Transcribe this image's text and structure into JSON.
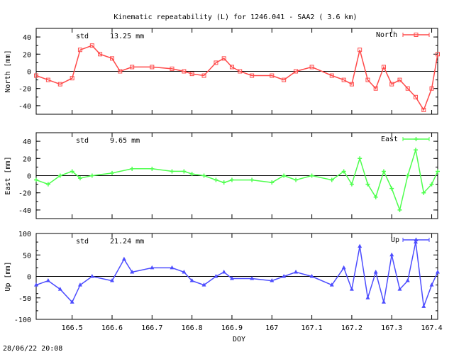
{
  "title": "Kinematic repeatability (L) for 1246.041 - SAA2  (  3.6 km)",
  "timestamp": "28/06/22 20:08",
  "xlabel": "DOY",
  "x_ticks": [
    "166.5",
    "166.6",
    "166.7",
    "166.8",
    "166.9",
    "167",
    "167.1",
    "167.2",
    "167.3",
    "167.4"
  ],
  "chart_data": [
    {
      "type": "line",
      "name": "North",
      "ylabel": "North [mm]",
      "stat_label": "std",
      "stat_value": "13.25 mm",
      "color": "#ff4a4a",
      "marker": "square",
      "xlim": [
        166.41,
        167.415
      ],
      "ylim": [
        -50,
        50
      ],
      "y_ticks": [
        "40",
        "20",
        "0",
        "-20",
        "-40"
      ],
      "x": [
        166.41,
        166.44,
        166.47,
        166.5,
        166.52,
        166.55,
        166.57,
        166.6,
        166.62,
        166.65,
        166.7,
        166.75,
        166.78,
        166.8,
        166.83,
        166.86,
        166.88,
        166.9,
        166.92,
        166.95,
        167.0,
        167.03,
        167.06,
        167.1,
        167.15,
        167.18,
        167.2,
        167.22,
        167.24,
        167.26,
        167.28,
        167.3,
        167.32,
        167.34,
        167.36,
        167.38,
        167.4,
        167.415
      ],
      "y": [
        -5,
        -10,
        -15,
        -8,
        25,
        30,
        20,
        15,
        0,
        5,
        5,
        3,
        0,
        -3,
        -5,
        10,
        15,
        5,
        0,
        -5,
        -5,
        -10,
        0,
        5,
        -5,
        -10,
        -15,
        25,
        -10,
        -20,
        5,
        -15,
        -10,
        -20,
        -30,
        -45,
        -20,
        20
      ]
    },
    {
      "type": "line",
      "name": "East",
      "ylabel": "East [mm]",
      "stat_label": "std",
      "stat_value": "9.65 mm",
      "color": "#4dff4d",
      "marker": "plus",
      "xlim": [
        166.41,
        167.415
      ],
      "ylim": [
        -50,
        50
      ],
      "y_ticks": [
        "40",
        "20",
        "0",
        "-20",
        "-40"
      ],
      "x": [
        166.41,
        166.44,
        166.47,
        166.5,
        166.52,
        166.55,
        166.6,
        166.65,
        166.7,
        166.75,
        166.78,
        166.8,
        166.83,
        166.86,
        166.88,
        166.9,
        166.95,
        167.0,
        167.03,
        167.06,
        167.1,
        167.15,
        167.18,
        167.2,
        167.22,
        167.24,
        167.26,
        167.28,
        167.3,
        167.32,
        167.34,
        167.36,
        167.38,
        167.4,
        167.415
      ],
      "y": [
        -5,
        -10,
        0,
        5,
        -3,
        0,
        3,
        8,
        8,
        5,
        5,
        2,
        0,
        -5,
        -8,
        -5,
        -5,
        -8,
        0,
        -5,
        0,
        -5,
        5,
        -10,
        20,
        -10,
        -25,
        5,
        -15,
        -40,
        0,
        30,
        -20,
        -10,
        5
      ]
    },
    {
      "type": "line",
      "name": "Up",
      "ylabel": "Up [mm]",
      "stat_label": "std",
      "stat_value": "21.24 mm",
      "color": "#4d4dff",
      "marker": "triangle",
      "xlim": [
        166.41,
        167.415
      ],
      "ylim": [
        -100,
        100
      ],
      "y_ticks": [
        "100",
        "50",
        "0",
        "-50",
        "-100"
      ],
      "x": [
        166.41,
        166.44,
        166.47,
        166.5,
        166.52,
        166.55,
        166.6,
        166.63,
        166.65,
        166.7,
        166.75,
        166.78,
        166.8,
        166.83,
        166.86,
        166.88,
        166.9,
        166.95,
        167.0,
        167.03,
        167.06,
        167.1,
        167.15,
        167.18,
        167.2,
        167.22,
        167.24,
        167.26,
        167.28,
        167.3,
        167.32,
        167.34,
        167.36,
        167.38,
        167.4,
        167.415
      ],
      "y": [
        -20,
        -10,
        -30,
        -60,
        -20,
        0,
        -10,
        40,
        10,
        20,
        20,
        10,
        -10,
        -20,
        0,
        10,
        -5,
        -5,
        -10,
        0,
        10,
        0,
        -20,
        20,
        -30,
        70,
        -50,
        10,
        -60,
        50,
        -30,
        -10,
        80,
        -70,
        -20,
        10
      ]
    }
  ]
}
